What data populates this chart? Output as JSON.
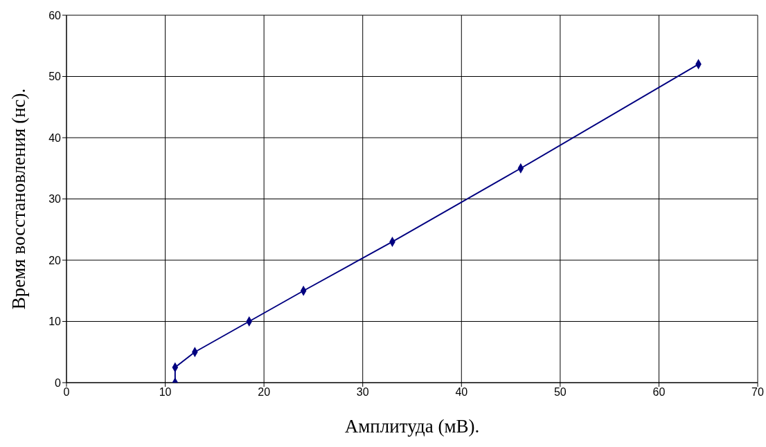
{
  "chart_data": {
    "type": "line",
    "xlabel": "Амплитуда (мВ).",
    "ylabel": "Время восстановления (нс).",
    "x": [
      11,
      11,
      13,
      18.5,
      24,
      33,
      46,
      64
    ],
    "series": [
      {
        "color": "#000080",
        "values": [
          0,
          2.5,
          5,
          10,
          15,
          23,
          35,
          52
        ]
      }
    ],
    "xlim": [
      0,
      70
    ],
    "xticks": [
      0,
      10,
      20,
      30,
      40,
      50,
      60,
      70
    ],
    "ylim": [
      0,
      60
    ],
    "yticks": [
      0,
      10,
      20,
      30,
      40,
      50,
      60
    ],
    "grid": true,
    "marker": "diamond",
    "legend": false
  }
}
